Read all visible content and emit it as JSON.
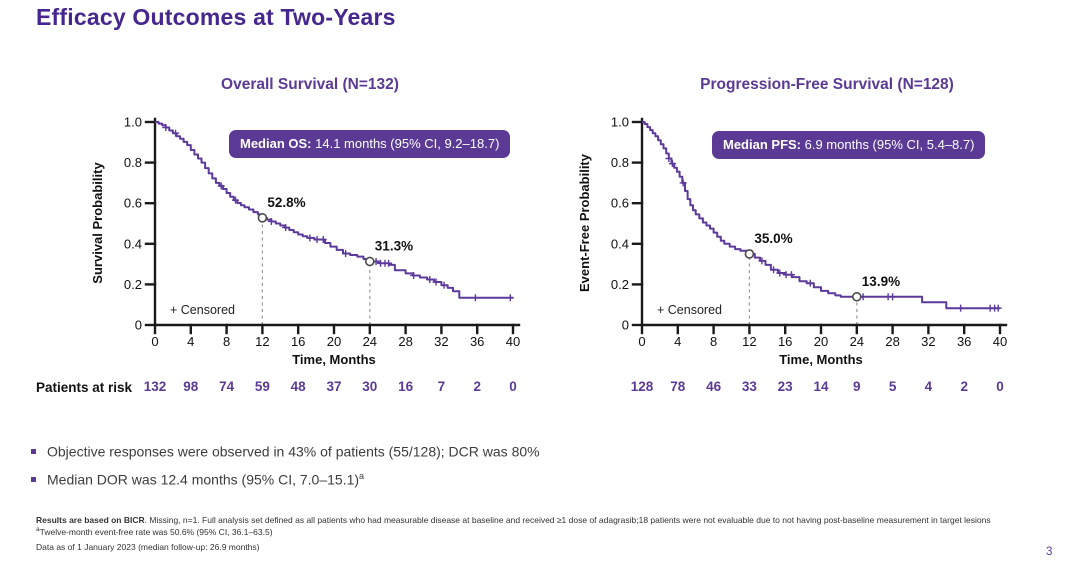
{
  "slide": {
    "title": "Efficacy Outcomes at Two-Years",
    "page_number": "3",
    "colors": {
      "title_purple": "#45278f",
      "banner_purple": "#5b3a96",
      "curve_purple": "#5c3a9c",
      "axis_black": "#1a1a1a",
      "annotation_gray": "#9a9a9a"
    }
  },
  "patients_at_risk_label": "Patients at risk",
  "bullets": [
    {
      "text": "Objective responses were observed in 43% of patients (55/128); DCR was 80%",
      "sup": ""
    },
    {
      "text": "Median DOR was 12.4 months (95% CI, 7.0–15.1)",
      "sup": "a"
    }
  ],
  "footnotes": {
    "line1_bold": "Results are based on BICR",
    "line1_rest": ". Missing, n=1. Full analysis set defined as all patients who had measurable disease at baseline and received ≥1 dose of adagrasib;18 patients were not evaluable due to not having post-baseline measurement in target lesions",
    "line2_sup": "a",
    "line2_text": "Twelve-month event-free rate was 50.6% (95% CI, 36.1–63.5)",
    "line3": "Data as of 1 January 2023 (median follow-up: 26.9 months)"
  },
  "chart_data": [
    {
      "type": "line",
      "subtype": "kaplan-meier-step",
      "title": "Overall Survival (N=132)",
      "banner": {
        "label": "Median OS:",
        "value": " 14.1 months (95% CI, 9.2–18.7)"
      },
      "xlabel": "Time, Months",
      "ylabel": "Survival Probability",
      "xlim": [
        0,
        40
      ],
      "ylim": [
        0,
        1
      ],
      "xticks": [
        0,
        4,
        8,
        12,
        16,
        20,
        24,
        28,
        32,
        36,
        40
      ],
      "yticks": [
        0,
        0.2,
        0.4,
        0.6,
        0.8,
        1.0
      ],
      "ytick_labels": [
        "0",
        "0.2",
        "0.4",
        "0.6",
        "0.8",
        "1.0"
      ],
      "censored_legend": "+ Censored",
      "annotations": [
        {
          "x": 12,
          "y": 0.528,
          "label": "52.8%"
        },
        {
          "x": 24,
          "y": 0.313,
          "label": "31.3%"
        }
      ],
      "at_risk": [
        132,
        98,
        74,
        59,
        48,
        37,
        30,
        16,
        7,
        2,
        0
      ],
      "points": [
        [
          0,
          1.0
        ],
        [
          0.4,
          0.992
        ],
        [
          0.8,
          0.984
        ],
        [
          1.2,
          0.973
        ],
        [
          1.6,
          0.958
        ],
        [
          2.0,
          0.945
        ],
        [
          2.4,
          0.93
        ],
        [
          2.8,
          0.917
        ],
        [
          3.2,
          0.902
        ],
        [
          3.6,
          0.886
        ],
        [
          4.0,
          0.862
        ],
        [
          4.4,
          0.84
        ],
        [
          4.8,
          0.82
        ],
        [
          5.2,
          0.8
        ],
        [
          5.6,
          0.773
        ],
        [
          6.0,
          0.747
        ],
        [
          6.4,
          0.722
        ],
        [
          6.8,
          0.7
        ],
        [
          7.2,
          0.685
        ],
        [
          7.6,
          0.67
        ],
        [
          8.0,
          0.65
        ],
        [
          8.4,
          0.632
        ],
        [
          8.8,
          0.615
        ],
        [
          9.2,
          0.601
        ],
        [
          9.6,
          0.59
        ],
        [
          10.0,
          0.58
        ],
        [
          10.5,
          0.569
        ],
        [
          11.0,
          0.556
        ],
        [
          11.5,
          0.545
        ],
        [
          11.9,
          0.528
        ],
        [
          12.5,
          0.519
        ],
        [
          13.0,
          0.51
        ],
        [
          13.5,
          0.5
        ],
        [
          14.0,
          0.49
        ],
        [
          14.5,
          0.48
        ],
        [
          15.0,
          0.468
        ],
        [
          15.5,
          0.457
        ],
        [
          16.0,
          0.446
        ],
        [
          16.5,
          0.437
        ],
        [
          17.0,
          0.429
        ],
        [
          17.8,
          0.421
        ],
        [
          19.0,
          0.404
        ],
        [
          19.6,
          0.386
        ],
        [
          20.3,
          0.37
        ],
        [
          21.0,
          0.352
        ],
        [
          21.8,
          0.345
        ],
        [
          22.6,
          0.337
        ],
        [
          23.3,
          0.325
        ],
        [
          23.9,
          0.313
        ],
        [
          25.0,
          0.304
        ],
        [
          26.2,
          0.296
        ],
        [
          26.8,
          0.27
        ],
        [
          28.0,
          0.254
        ],
        [
          28.8,
          0.244
        ],
        [
          29.6,
          0.234
        ],
        [
          30.4,
          0.224
        ],
        [
          31.2,
          0.212
        ],
        [
          32.0,
          0.196
        ],
        [
          32.7,
          0.183
        ],
        [
          33.3,
          0.166
        ],
        [
          34.0,
          0.134
        ]
      ],
      "censor_times": [
        1.2,
        2.3,
        7.4,
        9.0,
        13.0,
        14.6,
        17.3,
        18.1,
        18.8,
        21.3,
        24.7,
        25.2,
        25.7,
        26.1,
        28.9,
        30.7,
        31.4,
        32.3,
        35.8,
        39.7
      ]
    },
    {
      "type": "line",
      "subtype": "kaplan-meier-step",
      "title": "Progression-Free Survival (N=128)",
      "banner": {
        "label": "Median PFS:",
        "value": " 6.9 months (95% CI, 5.4–8.7)"
      },
      "xlabel": "Time, Months",
      "ylabel": "Event-Free Probability",
      "xlim": [
        0,
        40
      ],
      "ylim": [
        0,
        1
      ],
      "xticks": [
        0,
        4,
        8,
        12,
        16,
        20,
        24,
        28,
        32,
        36,
        40
      ],
      "yticks": [
        0,
        0.2,
        0.4,
        0.6,
        0.8,
        1.0
      ],
      "ytick_labels": [
        "0",
        "0.2",
        "0.4",
        "0.6",
        "0.8",
        "1.0"
      ],
      "censored_legend": "+ Censored",
      "annotations": [
        {
          "x": 12,
          "y": 0.35,
          "label": "35.0%"
        },
        {
          "x": 24,
          "y": 0.139,
          "label": "13.9%"
        }
      ],
      "at_risk": [
        128,
        78,
        46,
        33,
        23,
        14,
        9,
        5,
        4,
        2,
        0
      ],
      "points": [
        [
          0,
          1.0
        ],
        [
          0.3,
          0.99
        ],
        [
          0.6,
          0.975
        ],
        [
          0.9,
          0.96
        ],
        [
          1.2,
          0.945
        ],
        [
          1.5,
          0.93
        ],
        [
          1.8,
          0.91
        ],
        [
          2.1,
          0.89
        ],
        [
          2.4,
          0.87
        ],
        [
          2.7,
          0.845
        ],
        [
          3.0,
          0.82
        ],
        [
          3.3,
          0.795
        ],
        [
          3.6,
          0.775
        ],
        [
          3.9,
          0.755
        ],
        [
          4.2,
          0.73
        ],
        [
          4.5,
          0.7
        ],
        [
          4.8,
          0.66
        ],
        [
          5.1,
          0.62
        ],
        [
          5.4,
          0.59
        ],
        [
          5.7,
          0.565
        ],
        [
          6.0,
          0.545
        ],
        [
          6.4,
          0.525
        ],
        [
          6.8,
          0.505
        ],
        [
          7.2,
          0.49
        ],
        [
          7.6,
          0.475
        ],
        [
          8.0,
          0.455
        ],
        [
          8.4,
          0.435
        ],
        [
          8.8,
          0.415
        ],
        [
          9.2,
          0.4
        ],
        [
          9.8,
          0.386
        ],
        [
          10.4,
          0.374
        ],
        [
          11.0,
          0.366
        ],
        [
          11.9,
          0.35
        ],
        [
          12.6,
          0.332
        ],
        [
          13.2,
          0.316
        ],
        [
          13.8,
          0.296
        ],
        [
          14.4,
          0.272
        ],
        [
          15.2,
          0.256
        ],
        [
          16.0,
          0.248
        ],
        [
          16.8,
          0.236
        ],
        [
          17.6,
          0.216
        ],
        [
          18.4,
          0.206
        ],
        [
          19.2,
          0.186
        ],
        [
          20.0,
          0.168
        ],
        [
          20.8,
          0.156
        ],
        [
          21.6,
          0.146
        ],
        [
          22.2,
          0.139
        ],
        [
          31.3,
          0.112
        ],
        [
          34.0,
          0.083
        ]
      ],
      "censor_times": [
        3.0,
        3.4,
        4.6,
        13.4,
        14.7,
        15.4,
        16.1,
        16.7,
        18.8,
        24.7,
        27.5,
        28.0,
        35.6,
        38.9,
        39.4,
        39.8
      ]
    }
  ]
}
